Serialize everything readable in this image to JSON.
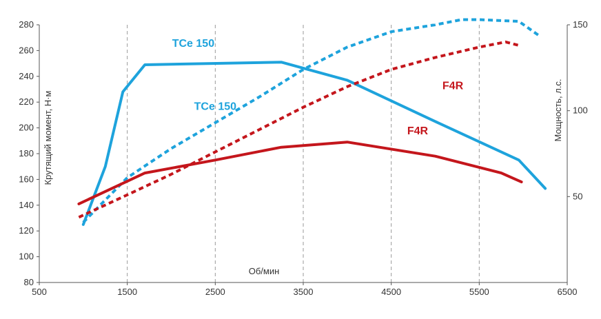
{
  "chart_data": {
    "type": "line",
    "xlabel": "Об/мин",
    "ylabel_left": "Крутящий момент, Н·м",
    "ylabel_right": "Мощность, л.с.",
    "xlim": [
      500,
      6500
    ],
    "xticks": [
      500,
      1500,
      2500,
      3500,
      4500,
      5500,
      6500
    ],
    "ylim_left": [
      80,
      280
    ],
    "yticks_left": [
      80,
      100,
      120,
      140,
      160,
      180,
      200,
      220,
      240,
      260,
      280
    ],
    "ylim_right": [
      0,
      150
    ],
    "yticks_right": [
      50,
      100,
      150
    ],
    "grid": {
      "vertical": true,
      "horizontal": false
    },
    "colors": {
      "tce": "#1ea3dc",
      "f4r": "#c4161c"
    },
    "series": [
      {
        "name": "TCe 150",
        "kind": "torque",
        "axis": "left",
        "style": "solid",
        "color": "#1ea3dc",
        "x": [
          1000,
          1250,
          1450,
          1700,
          3250,
          4000,
          5000,
          5950,
          6250
        ],
        "y": [
          125,
          170,
          228,
          249,
          251,
          237,
          205,
          175,
          153
        ]
      },
      {
        "name": "TCe 150",
        "kind": "power",
        "axis": "right",
        "style": "dashed",
        "color": "#1ea3dc",
        "x": [
          1000,
          1500,
          2000,
          2500,
          3000,
          3500,
          4000,
          4500,
          5000,
          5300,
          5500,
          5950,
          6200
        ],
        "y": [
          35,
          61,
          78,
          93,
          108,
          124,
          137,
          146,
          150,
          153,
          153,
          152,
          143
        ]
      },
      {
        "name": "F4R",
        "kind": "torque",
        "axis": "left",
        "style": "solid",
        "color": "#c4161c",
        "x": [
          950,
          1700,
          2500,
          3250,
          4000,
          5000,
          5750,
          5980
        ],
        "y": [
          141,
          165,
          175,
          185,
          189,
          178,
          165,
          158
        ]
      },
      {
        "name": "F4R",
        "kind": "power",
        "axis": "right",
        "style": "dashed",
        "color": "#c4161c",
        "x": [
          950,
          1500,
          2000,
          2500,
          3000,
          3500,
          4000,
          4500,
          5000,
          5500,
          5800,
          5950
        ],
        "y": [
          38,
          51,
          63,
          76,
          89,
          102,
          114,
          124,
          131,
          137,
          140,
          138
        ]
      }
    ],
    "labels": [
      {
        "text": "TCe 150",
        "series": 0,
        "x": 2250,
        "y": 263
      },
      {
        "text": "TCe 150",
        "series": 1,
        "x": 2500,
        "y": 214
      },
      {
        "text": "F4R",
        "series": 3,
        "x": 5200,
        "y": 230
      },
      {
        "text": "F4R",
        "series": 2,
        "x": 4800,
        "y": 195
      }
    ]
  }
}
